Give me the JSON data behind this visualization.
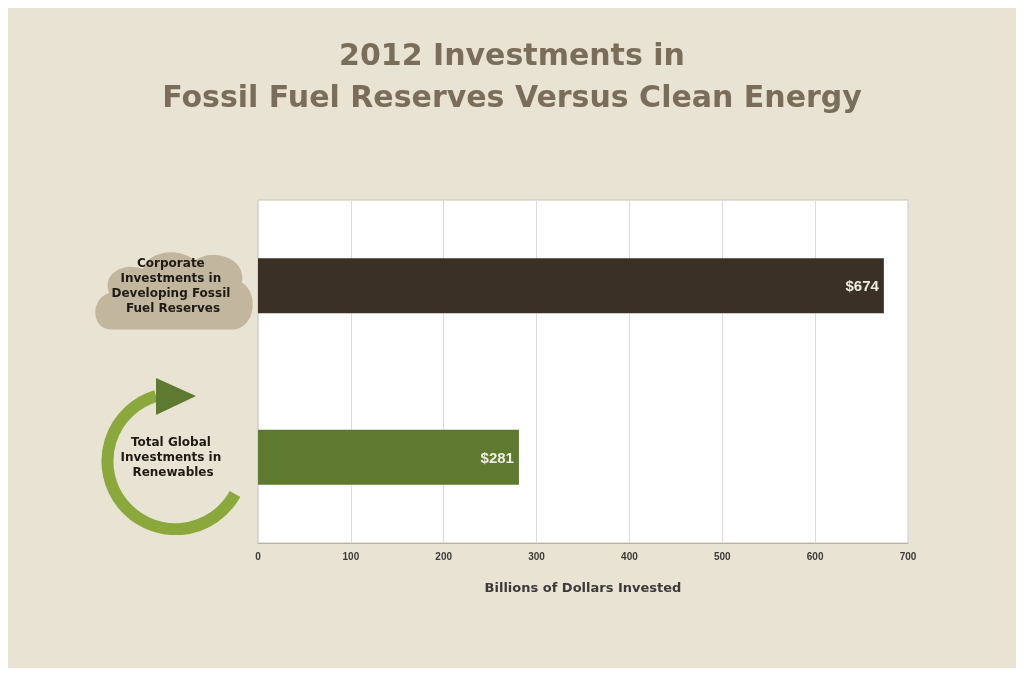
{
  "chart_data": {
    "type": "bar",
    "orientation": "horizontal",
    "title": "2012 Investments in\nFossil Fuel Reserves Versus Clean Energy",
    "xlabel": "Billions of Dollars Invested",
    "categories": [
      "Corporate Investments in Developing Fossil Fuel Reserves",
      "Total Global Investments in Renewables"
    ],
    "values": [
      674,
      281
    ],
    "colors": [
      "#3a3024",
      "#5e7a30"
    ],
    "value_labels": [
      "$674",
      "$281"
    ],
    "xlim": [
      0,
      700
    ],
    "xticks": [
      0,
      100,
      200,
      300,
      400,
      500,
      600,
      700
    ],
    "grid": "x"
  }
}
